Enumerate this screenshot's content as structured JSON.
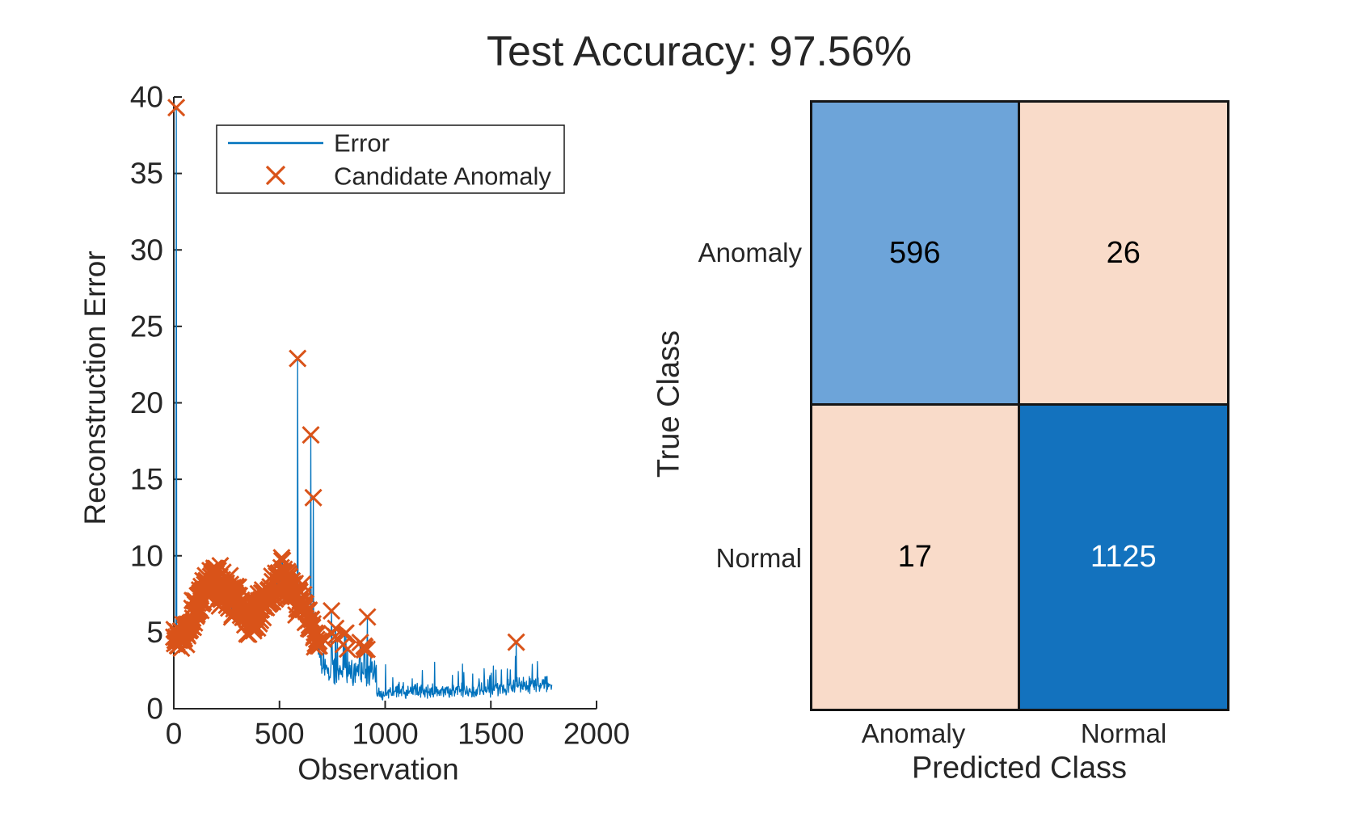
{
  "title": "Test Accuracy: 97.56%",
  "colors": {
    "line": "#0072BD",
    "marker": "#D95319",
    "axis": "#262626",
    "text": "#262626",
    "matrix_border": "#151515",
    "cell_true_anomaly": "#6DA4D9",
    "cell_true_normal": "#1372BE",
    "cell_off_diagonal": "#F9DBC9",
    "value_on_dark": "#FFFFFF",
    "value_on_light": "#000000"
  },
  "chart_data": [
    {
      "type": "line",
      "title": "",
      "xlabel": "Observation",
      "ylabel": "Reconstruction Error",
      "xlim": [
        0,
        2000
      ],
      "ylim": [
        0,
        40
      ],
      "xticks": [
        0,
        500,
        1000,
        1500,
        2000
      ],
      "yticks": [
        0,
        5,
        10,
        15,
        20,
        25,
        30,
        35,
        40
      ],
      "grid": false,
      "legend": {
        "position": "upper-left",
        "entries": [
          {
            "label": "Error",
            "type": "line"
          },
          {
            "label": "Candidate Anomaly",
            "type": "x-marker"
          }
        ]
      },
      "series_generator": {
        "comment": "Reconstruction-error trace, obs 0..1790; noisy band 4-10.5 until ~obs 680 (nearly all flagged as anomalies), then low noise 0.5-3 with sparse flagged peaks",
        "seed": 42,
        "step": 2,
        "anomaly_threshold": 3.8,
        "segments": [
          {
            "from": 0,
            "to": 80,
            "base": [
              4.6,
              5.2
            ],
            "amp": 1.0
          },
          {
            "from": 80,
            "to": 150,
            "base": [
              5.6,
              8.2
            ],
            "amp": 1.3
          },
          {
            "from": 150,
            "to": 260,
            "base": [
              8.2,
              8.0
            ],
            "amp": 1.5
          },
          {
            "from": 260,
            "to": 340,
            "base": [
              7.6,
              6.0
            ],
            "amp": 1.6
          },
          {
            "from": 340,
            "to": 400,
            "base": [
              5.9,
              6.3
            ],
            "amp": 1.3
          },
          {
            "from": 400,
            "to": 520,
            "base": [
              6.5,
              8.6
            ],
            "amp": 1.5
          },
          {
            "from": 520,
            "to": 610,
            "base": [
              8.5,
              6.8
            ],
            "amp": 1.5
          },
          {
            "from": 610,
            "to": 680,
            "base": [
              6.6,
              4.6
            ],
            "amp": 1.1
          },
          {
            "from": 680,
            "to": 702,
            "base": [
              4.2,
              2.8
            ],
            "amp": 0.8
          },
          {
            "from": 702,
            "to": 780,
            "base": [
              2.5,
              2.4
            ],
            "amp": 1.0,
            "burst": 0.18,
            "burst_amp": 2.2
          },
          {
            "from": 780,
            "to": 960,
            "base": [
              2.5,
              2.2
            ],
            "amp": 1.0,
            "burst": 0.15,
            "burst_amp": 2.0
          },
          {
            "from": 960,
            "to": 1002,
            "base": [
              1.0,
              0.9
            ],
            "amp": 0.45
          },
          {
            "from": 1002,
            "to": 1440,
            "base": [
              1.1,
              1.2
            ],
            "amp": 0.55,
            "burst": 0.07,
            "burst_amp": 1.3
          },
          {
            "from": 1440,
            "to": 1562,
            "base": [
              1.4,
              1.3
            ],
            "amp": 0.7,
            "burst": 0.09,
            "burst_amp": 1.4
          },
          {
            "from": 1562,
            "to": 1790,
            "base": [
              1.4,
              1.7
            ],
            "amp": 0.65,
            "burst": 0.06,
            "burst_amp": 1.3
          }
        ],
        "spikes": [
          {
            "x": 12,
            "y": 39.3
          },
          {
            "x": 585,
            "y": 22.9
          },
          {
            "x": 648,
            "y": 17.9
          },
          {
            "x": 660,
            "y": 13.8
          },
          {
            "x": 745,
            "y": 6.4
          },
          {
            "x": 915,
            "y": 6.0
          },
          {
            "x": 1620,
            "y": 4.35
          }
        ]
      }
    },
    {
      "type": "heatmap",
      "subtype": "confusion-matrix",
      "xlabel": "Predicted Class",
      "ylabel": "True Class",
      "row_labels": [
        "Anomaly",
        "Normal"
      ],
      "col_labels": [
        "Anomaly",
        "Normal"
      ],
      "values": [
        [
          596,
          26
        ],
        [
          17,
          1125
        ]
      ],
      "cell_colors": [
        [
          "#6DA4D9",
          "#F9DBC9"
        ],
        [
          "#F9DBC9",
          "#1372BE"
        ]
      ],
      "value_colors": [
        [
          "#000000",
          "#000000"
        ],
        [
          "#000000",
          "#FFFFFF"
        ]
      ]
    }
  ]
}
